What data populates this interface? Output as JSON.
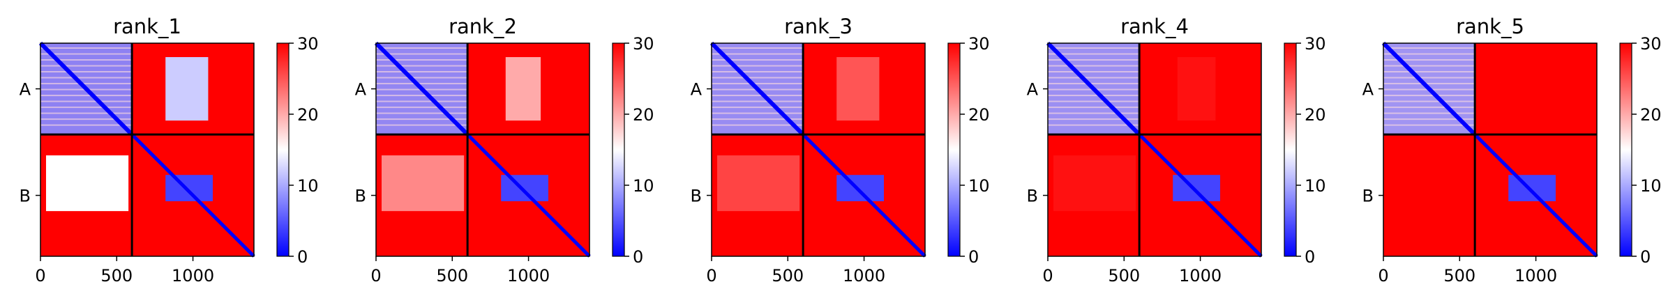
{
  "chart_data": {
    "type": "heatmap",
    "colormap": {
      "name": "bwr",
      "low": "#0000ff",
      "mid": "#ffffff",
      "high": "#ff0000"
    },
    "clim": [
      0,
      30
    ],
    "colorbar_ticks": [
      0,
      10,
      20,
      30
    ],
    "xlim": [
      0,
      1400
    ],
    "x_ticks": [
      0,
      500,
      1000
    ],
    "chain_break": 600,
    "y_tick_labels": [
      "A",
      "B"
    ],
    "panels": [
      {
        "title": "rank_1",
        "offdiag_stripes": [
          [
            820,
            1100,
            12
          ]
        ],
        "offdiag_region_rows_b": [
          [
            0,
            600,
            15
          ]
        ]
      },
      {
        "title": "rank_2",
        "offdiag_stripes": [
          [
            850,
            1080,
            20
          ]
        ],
        "offdiag_region_rows_b": [
          [
            0,
            600,
            22
          ]
        ]
      },
      {
        "title": "rank_3",
        "offdiag_stripes": [
          [
            820,
            1100,
            25
          ]
        ],
        "offdiag_region_rows_b": [
          [
            0,
            600,
            26
          ]
        ]
      },
      {
        "title": "rank_4",
        "offdiag_stripes": [
          [
            850,
            1100,
            29
          ]
        ],
        "offdiag_region_rows_b": [
          [
            0,
            600,
            29
          ]
        ]
      },
      {
        "title": "rank_5",
        "offdiag_stripes": [
          [
            850,
            1100,
            30
          ]
        ],
        "offdiag_region_rows_b": [
          [
            0,
            600,
            30
          ]
        ]
      }
    ]
  }
}
